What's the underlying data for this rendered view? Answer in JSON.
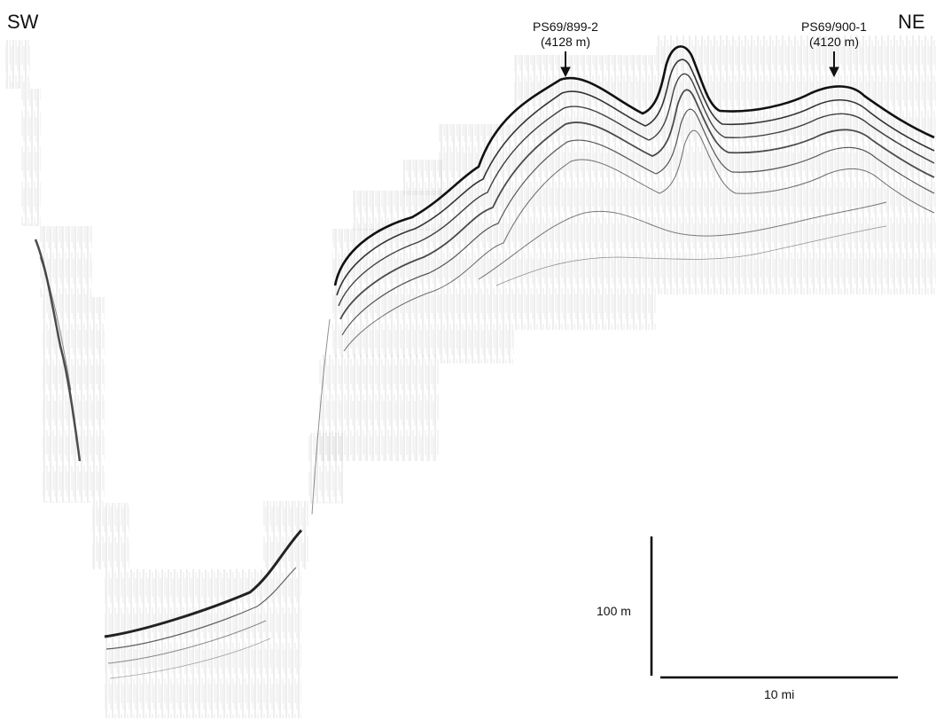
{
  "directions": {
    "left": "SW",
    "right": "NE"
  },
  "cores": [
    {
      "name": "PS69/899-2",
      "depth": "(4128 m)"
    },
    {
      "name": "PS69/900-1",
      "depth": "(4120 m)"
    }
  ],
  "scale": {
    "vertical": "100 m",
    "horizontal": "10 mi"
  },
  "colors": {
    "ink": "#111111",
    "background": "#ffffff"
  }
}
